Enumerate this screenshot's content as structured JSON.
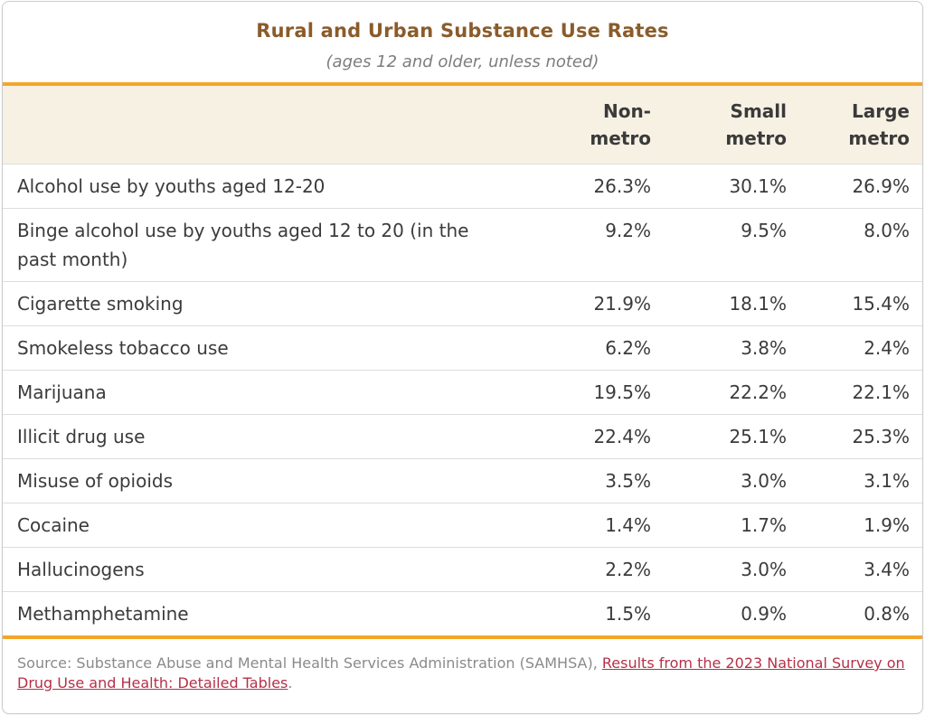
{
  "chart_data": {
    "type": "table",
    "title": "Rural and Urban Substance Use Rates",
    "subtitle": "(ages 12 and older, unless noted)",
    "columns": [
      "Non-metro",
      "Small metro",
      "Large metro"
    ],
    "row_labels": [
      "Alcohol use by youths aged 12-20",
      "Binge alcohol use by youths aged 12 to 20 (in the past month)",
      "Cigarette smoking",
      "Smokeless tobacco use",
      "Marijuana",
      "Illicit drug use",
      "Misuse of opioids",
      "Cocaine",
      "Hallucinogens",
      "Methamphetamine"
    ],
    "unit": "%",
    "series": [
      {
        "name": "Non-metro",
        "values": [
          26.3,
          9.2,
          21.9,
          6.2,
          19.5,
          22.4,
          3.5,
          1.4,
          2.2,
          1.5
        ]
      },
      {
        "name": "Small metro",
        "values": [
          30.1,
          9.5,
          18.1,
          3.8,
          22.2,
          25.1,
          3.0,
          1.7,
          3.0,
          0.9
        ]
      },
      {
        "name": "Large metro",
        "values": [
          26.9,
          8.0,
          15.4,
          2.4,
          22.1,
          25.3,
          3.1,
          1.9,
          3.4,
          0.8
        ]
      }
    ]
  },
  "header": {
    "title": "Rural and Urban Substance Use Rates",
    "subtitle": "(ages 12 and older, unless noted)"
  },
  "table": {
    "header_labels": [
      "Non-\nmetro",
      "Small\nmetro",
      "Large\nmetro"
    ],
    "rows": [
      {
        "label": "Alcohol use by youths aged 12-20",
        "values": [
          "26.3%",
          "30.1%",
          "26.9%"
        ]
      },
      {
        "label": "Binge alcohol use by youths aged 12 to 20 (in the past month)",
        "values": [
          "9.2%",
          "9.5%",
          "8.0%"
        ]
      },
      {
        "label": "Cigarette smoking",
        "values": [
          "21.9%",
          "18.1%",
          "15.4%"
        ]
      },
      {
        "label": "Smokeless tobacco use",
        "values": [
          "6.2%",
          "3.8%",
          "2.4%"
        ]
      },
      {
        "label": "Marijuana",
        "values": [
          "19.5%",
          "22.2%",
          "22.1%"
        ]
      },
      {
        "label": "Illicit drug use",
        "values": [
          "22.4%",
          "25.1%",
          "25.3%"
        ]
      },
      {
        "label": "Misuse of opioids",
        "values": [
          "3.5%",
          "3.0%",
          "3.1%"
        ]
      },
      {
        "label": "Cocaine",
        "values": [
          "1.4%",
          "1.7%",
          "1.9%"
        ]
      },
      {
        "label": "Hallucinogens",
        "values": [
          "2.2%",
          "3.0%",
          "3.4%"
        ]
      },
      {
        "label": "Methamphetamine",
        "values": [
          "1.5%",
          "0.9%",
          "0.8%"
        ]
      }
    ]
  },
  "footer": {
    "source_prefix": "Source: Substance Abuse and Mental Health Services Administration (SAMHSA), ",
    "link_text": "Results from the 2023 National Survey on Drug Use and Health: Detailed Tables",
    "suffix": "."
  },
  "colors": {
    "accent_orange": "#f3a62c",
    "title_brown": "#8a5c2b",
    "header_bg": "#f6f1e3",
    "link_red": "#b43148",
    "text_dark": "#3b3b3b",
    "source_gray": "#8a8a8a"
  }
}
